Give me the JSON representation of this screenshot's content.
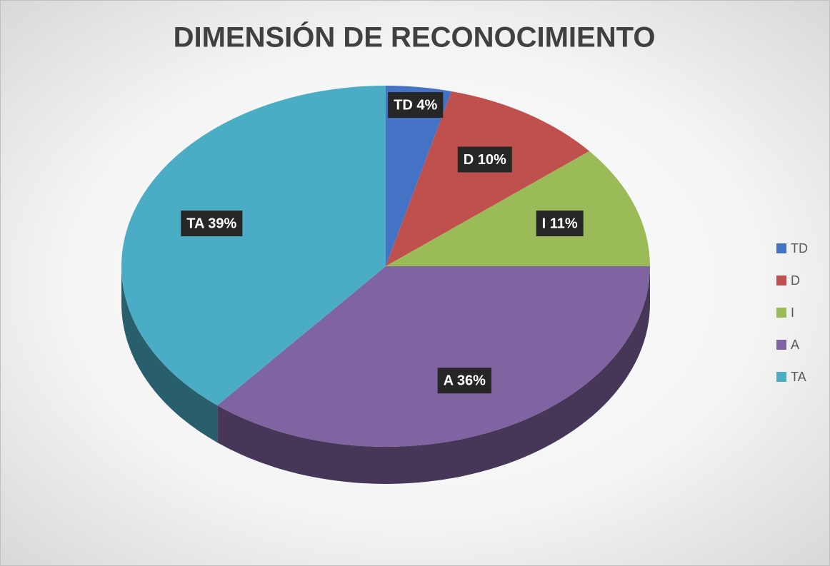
{
  "chart_data": {
    "type": "pie",
    "title": "DIMENSIÓN DE RECONOCIMIENTO",
    "categories": [
      "TD",
      "D",
      "I",
      "A",
      "TA"
    ],
    "values": [
      4,
      10,
      11,
      36,
      39
    ],
    "value_labels": [
      "TD 4%",
      "D 10%",
      "I 11%",
      "A 36%",
      "TA 39%"
    ],
    "colors": [
      "#4472c4",
      "#c0504d",
      "#9bbb59",
      "#8064a2",
      "#4bacc6"
    ],
    "legend": "right"
  }
}
